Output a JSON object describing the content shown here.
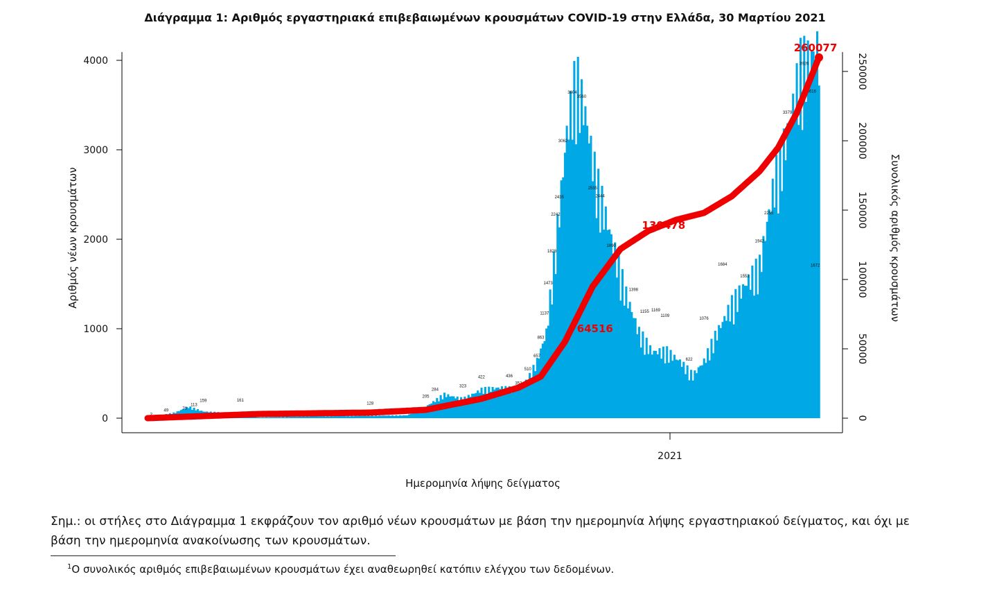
{
  "chart_data": {
    "type": "bar+line",
    "title": "Διάγραμμα 1: Αριθμός εργαστηριακά επιβεβαιωμένων κρουσμάτων COVID-19 στην Ελλάδα, 30 Μαρτίου 2021",
    "xlabel": "Ημερομηνία λήψης δείγματος",
    "ylabel": "Αριθμός νέων κρουσμάτων",
    "y2label": "Συνολικός αριθμός κρουσμάτων",
    "x_tick_label": "2021",
    "ylim": [
      0,
      4000
    ],
    "y_ticks": [
      0,
      1000,
      2000,
      3000,
      4000
    ],
    "y2lim": [
      0,
      250000
    ],
    "y2_ticks": [
      0,
      50000,
      100000,
      150000,
      200000,
      250000
    ],
    "colors": {
      "bars": "#00a8e6",
      "cumulative": "#ee0000"
    },
    "daily_keypoints": [
      {
        "day": 0,
        "value": 2
      },
      {
        "day": 15,
        "value": 60
      },
      {
        "day": 22,
        "value": 120
      },
      {
        "day": 30,
        "value": 70
      },
      {
        "day": 38,
        "value": 60
      },
      {
        "day": 44,
        "value": 40
      },
      {
        "day": 60,
        "value": 8
      },
      {
        "day": 90,
        "value": 20
      },
      {
        "day": 120,
        "value": 25
      },
      {
        "day": 140,
        "value": 30
      },
      {
        "day": 150,
        "value": 120
      },
      {
        "day": 160,
        "value": 250
      },
      {
        "day": 170,
        "value": 200
      },
      {
        "day": 180,
        "value": 300
      },
      {
        "day": 190,
        "value": 320
      },
      {
        "day": 200,
        "value": 300
      },
      {
        "day": 205,
        "value": 400
      },
      {
        "day": 210,
        "value": 600
      },
      {
        "day": 215,
        "value": 900
      },
      {
        "day": 220,
        "value": 1800
      },
      {
        "day": 226,
        "value": 3000
      },
      {
        "day": 231,
        "value": 3600
      },
      {
        "day": 236,
        "value": 3200
      },
      {
        "day": 242,
        "value": 2500
      },
      {
        "day": 250,
        "value": 1900
      },
      {
        "day": 258,
        "value": 1300
      },
      {
        "day": 265,
        "value": 900
      },
      {
        "day": 272,
        "value": 700
      },
      {
        "day": 280,
        "value": 700
      },
      {
        "day": 287,
        "value": 600
      },
      {
        "day": 294,
        "value": 450
      },
      {
        "day": 300,
        "value": 600
      },
      {
        "day": 307,
        "value": 900
      },
      {
        "day": 315,
        "value": 1200
      },
      {
        "day": 322,
        "value": 1400
      },
      {
        "day": 330,
        "value": 1600
      },
      {
        "day": 338,
        "value": 2500
      },
      {
        "day": 345,
        "value": 3000
      },
      {
        "day": 352,
        "value": 3700
      },
      {
        "day": 358,
        "value": 3800
      },
      {
        "day": 362,
        "value": 3900
      }
    ],
    "cumulative_points": [
      {
        "day": 0,
        "value": 0
      },
      {
        "day": 60,
        "value": 3000
      },
      {
        "day": 120,
        "value": 4000
      },
      {
        "day": 150,
        "value": 6000
      },
      {
        "day": 180,
        "value": 14000
      },
      {
        "day": 200,
        "value": 22000
      },
      {
        "day": 212,
        "value": 30000
      },
      {
        "day": 225,
        "value": 55000
      },
      {
        "day": 240,
        "value": 95000
      },
      {
        "day": 255,
        "value": 122000
      },
      {
        "day": 270,
        "value": 135000
      },
      {
        "day": 285,
        "value": 143000
      },
      {
        "day": 300,
        "value": 148000
      },
      {
        "day": 315,
        "value": 160000
      },
      {
        "day": 330,
        "value": 178000
      },
      {
        "day": 340,
        "value": 195000
      },
      {
        "day": 350,
        "value": 220000
      },
      {
        "day": 362,
        "value": 260077
      }
    ],
    "bar_labels": [
      {
        "day": 2,
        "text": "2"
      },
      {
        "day": 10,
        "text": "49"
      },
      {
        "day": 20,
        "text": "70"
      },
      {
        "day": 25,
        "text": "113"
      },
      {
        "day": 30,
        "text": "159"
      },
      {
        "day": 50,
        "text": "161"
      },
      {
        "day": 120,
        "text": "128"
      },
      {
        "day": 150,
        "text": "205"
      },
      {
        "day": 155,
        "text": "284"
      },
      {
        "day": 170,
        "text": "323"
      },
      {
        "day": 180,
        "text": "422"
      },
      {
        "day": 195,
        "text": "436"
      },
      {
        "day": 200,
        "text": "352"
      },
      {
        "day": 205,
        "text": "510"
      },
      {
        "day": 210,
        "text": "657"
      },
      {
        "day": 212,
        "text": "863"
      },
      {
        "day": 214,
        "text": "1137"
      },
      {
        "day": 216,
        "text": "1473"
      },
      {
        "day": 218,
        "text": "1828"
      },
      {
        "day": 220,
        "text": "2242"
      },
      {
        "day": 222,
        "text": "2435"
      },
      {
        "day": 224,
        "text": "3062"
      },
      {
        "day": 229,
        "text": "3604"
      },
      {
        "day": 234,
        "text": "3560"
      },
      {
        "day": 240,
        "text": "2535"
      },
      {
        "day": 244,
        "text": "2444"
      },
      {
        "day": 250,
        "text": "1890"
      },
      {
        "day": 262,
        "text": "1398"
      },
      {
        "day": 268,
        "text": "1155"
      },
      {
        "day": 274,
        "text": "1169"
      },
      {
        "day": 279,
        "text": "1109"
      },
      {
        "day": 292,
        "text": "622"
      },
      {
        "day": 300,
        "text": "1076"
      },
      {
        "day": 310,
        "text": "1684"
      },
      {
        "day": 322,
        "text": "1552"
      },
      {
        "day": 330,
        "text": "1942"
      },
      {
        "day": 335,
        "text": "2255"
      },
      {
        "day": 345,
        "text": "3379"
      },
      {
        "day": 354,
        "text": "3926"
      },
      {
        "day": 358,
        "text": "3616"
      },
      {
        "day": 360,
        "text": "1672"
      }
    ],
    "annotations": [
      {
        "day": 242,
        "series": "cumulative",
        "text": "64516"
      },
      {
        "day": 282,
        "series": "cumulative",
        "text": "130478"
      },
      {
        "day": 362,
        "series": "cumulative",
        "text": "260077"
      }
    ]
  },
  "note": {
    "text": "Σημ.: οι στήλες στο Διάγραμμα 1 εκφράζουν τον αριθμό νέων κρουσμάτων με βάση την ημερομηνία λήψης εργαστηριακού δείγματος, και όχι με βάση την ημερομηνία ανακοίνωσης των κρουσμάτων."
  },
  "footnote": {
    "marker": "1",
    "text": "Ο συνολικός αριθμός επιβεβαιωμένων κρουσμάτων έχει αναθεωρηθεί κατόπιν ελέγχου των δεδομένων."
  }
}
